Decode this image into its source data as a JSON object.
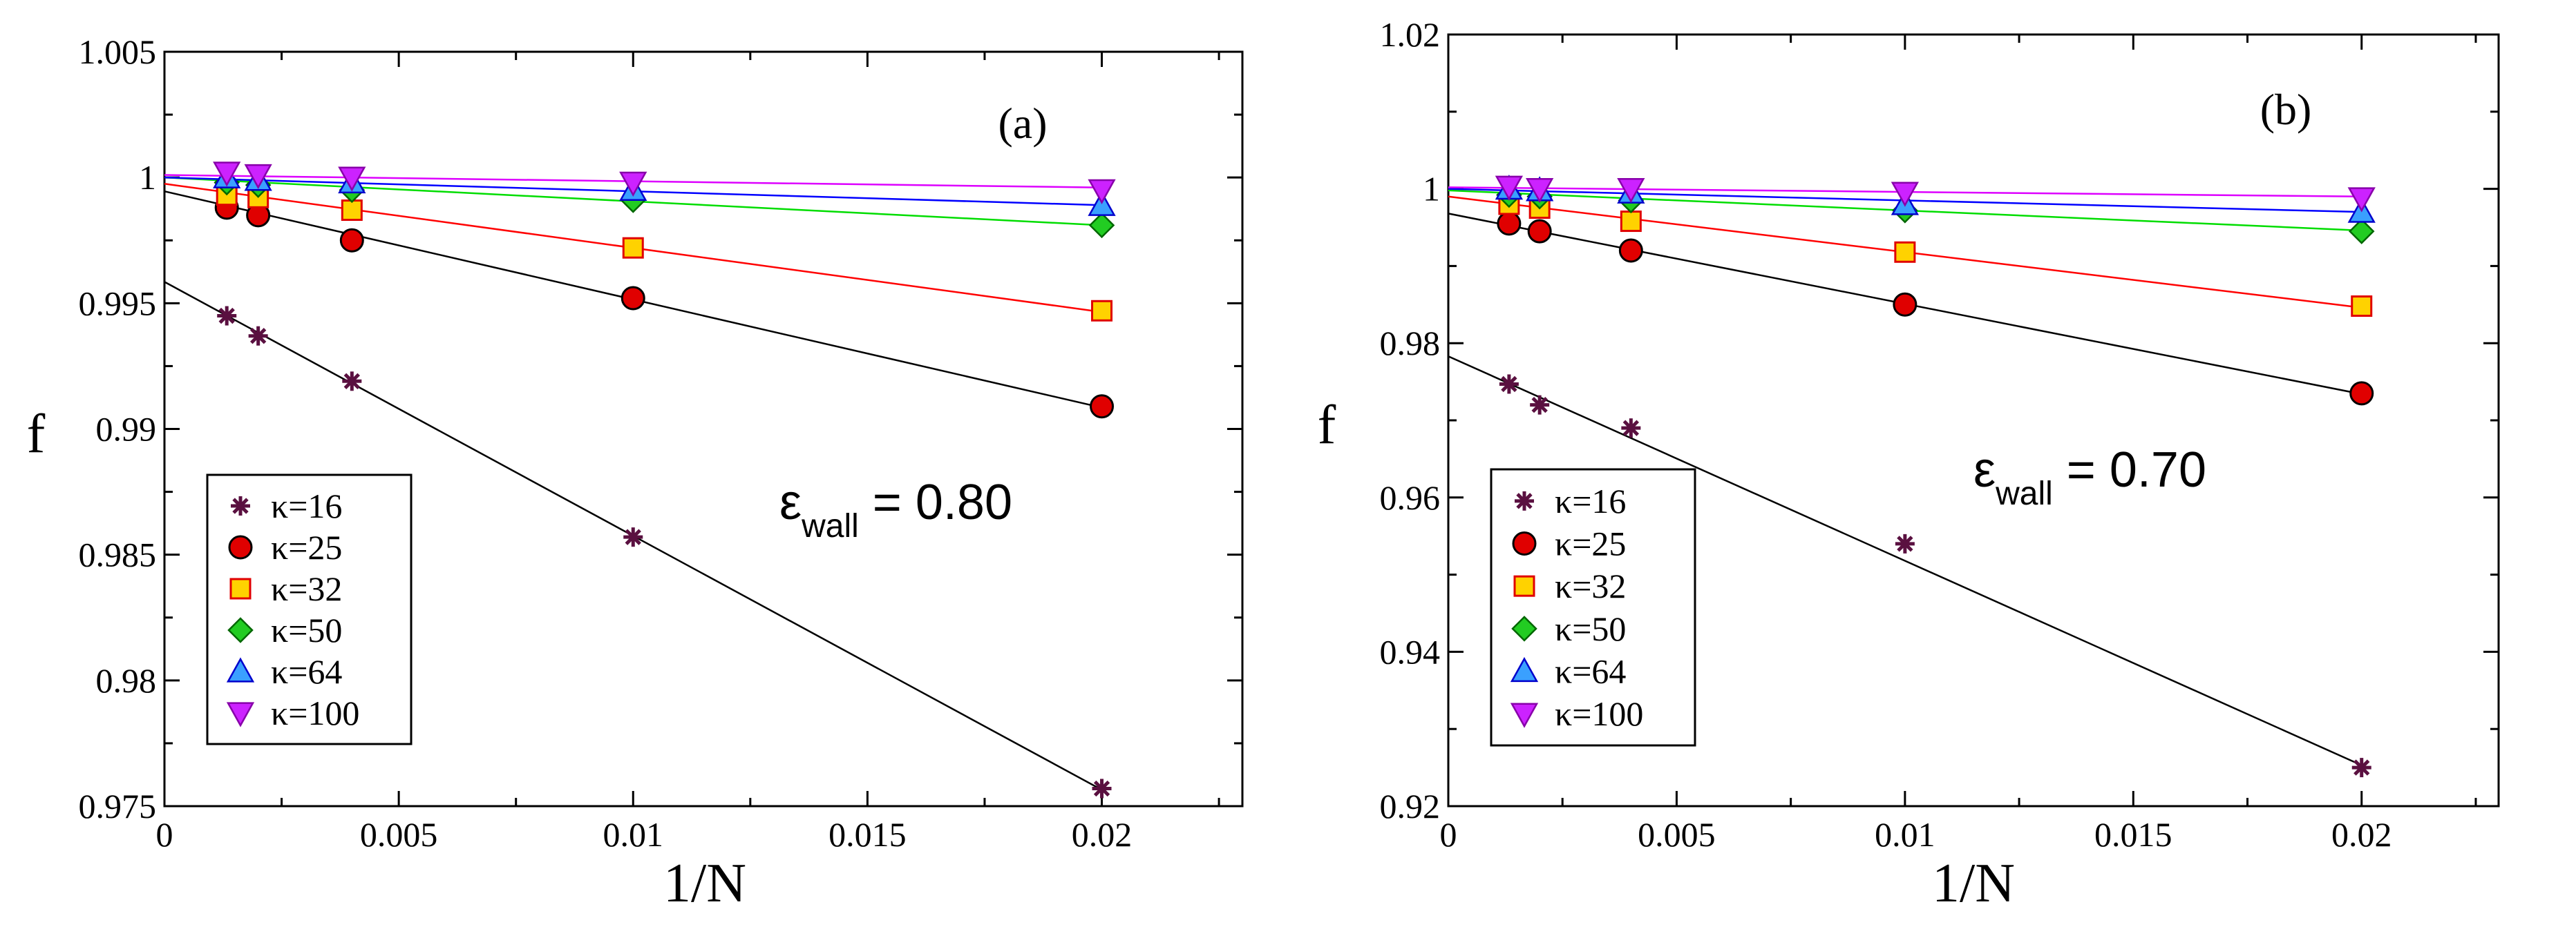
{
  "chart_data": [
    {
      "type": "scatter",
      "panel_label": "(a)",
      "xlabel": "1/N",
      "ylabel": "f",
      "xlim": [
        0,
        0.023
      ],
      "ylim": [
        0.975,
        1.005
      ],
      "xticks": [
        0,
        0.005,
        0.01,
        0.015,
        0.02
      ],
      "xtick_labels": [
        "0",
        "0.005",
        "0.01",
        "0.015",
        "0.02"
      ],
      "yticks": [
        0.975,
        0.98,
        0.985,
        0.99,
        0.995,
        1,
        1.005
      ],
      "ytick_labels": [
        "0.975",
        "0.98",
        "0.985",
        "0.99",
        "0.995",
        "1",
        "1.005"
      ],
      "annotation": {
        "symbol": "ε",
        "sub": "wall",
        "value": " = 0.80"
      },
      "legend_position": "bottom-left",
      "series": [
        {
          "name": "κ=16",
          "marker": "star",
          "color": "#5a1040",
          "x": [
            0.00133,
            0.002,
            0.004,
            0.01,
            0.02
          ],
          "y": [
            0.9945,
            0.9937,
            0.9919,
            0.9857,
            0.9757
          ],
          "fit": {
            "intercept": 0.99585,
            "slope": -1.01
          }
        },
        {
          "name": "κ=25",
          "marker": "circle",
          "color": "#e00000",
          "x": [
            0.00133,
            0.002,
            0.004,
            0.01,
            0.02
          ],
          "y": [
            0.9988,
            0.9985,
            0.9975,
            0.9952,
            0.9909
          ],
          "fit": {
            "intercept": 0.99945,
            "slope": -0.43
          }
        },
        {
          "name": "κ=32",
          "marker": "square",
          "color": "#ffd200",
          "x": [
            0.00133,
            0.002,
            0.004,
            0.01,
            0.02
          ],
          "y": [
            0.9993,
            0.9992,
            0.9987,
            0.9972,
            0.9947
          ],
          "fit": {
            "intercept": 0.99975,
            "slope": -0.255
          }
        },
        {
          "name": "κ=50",
          "marker": "diamond",
          "color": "#22cc22",
          "x": [
            0.00133,
            0.002,
            0.004,
            0.01,
            0.02
          ],
          "y": [
            0.9998,
            0.9997,
            0.9995,
            0.9991,
            0.9981
          ],
          "fit": {
            "intercept": 1.0,
            "slope": -0.095
          }
        },
        {
          "name": "κ=64",
          "marker": "triangle-up",
          "color": "#3aa0ff",
          "x": [
            0.00133,
            0.002,
            0.004,
            0.01,
            0.02
          ],
          "y": [
            1.0,
            0.9999,
            0.9998,
            0.9995,
            0.9989
          ],
          "fit": {
            "intercept": 1.0,
            "slope": -0.055
          }
        },
        {
          "name": "κ=100",
          "marker": "triangle-down",
          "color": "#cc22ff",
          "x": [
            0.00133,
            0.002,
            0.004,
            0.01,
            0.02
          ],
          "y": [
            1.0002,
            1.0001,
            1.0,
            0.9998,
            0.9995
          ],
          "fit": {
            "intercept": 1.0001,
            "slope": -0.025
          }
        }
      ]
    },
    {
      "type": "scatter",
      "panel_label": "(b)",
      "xlabel": "1/N",
      "ylabel": "f",
      "xlim": [
        0,
        0.023
      ],
      "ylim": [
        0.92,
        1.02
      ],
      "xticks": [
        0,
        0.005,
        0.01,
        0.015,
        0.02
      ],
      "xtick_labels": [
        "0",
        "0.005",
        "0.01",
        "0.015",
        "0.02"
      ],
      "yticks": [
        0.92,
        0.94,
        0.96,
        0.98,
        1,
        1.02
      ],
      "ytick_labels": [
        "0.92",
        "0.94",
        "0.96",
        "0.98",
        "1",
        "1.02"
      ],
      "annotation": {
        "symbol": "ε",
        "sub": "wall",
        "value": " = 0.70"
      },
      "legend_position": "bottom-left",
      "series": [
        {
          "name": "κ=16",
          "marker": "star",
          "color": "#5a1040",
          "x": [
            0.00133,
            0.002,
            0.004,
            0.01,
            0.02
          ],
          "y": [
            0.9747,
            0.972,
            0.969,
            0.954,
            0.925
          ],
          "fit": {
            "intercept": 0.9783,
            "slope": -2.65
          }
        },
        {
          "name": "κ=25",
          "marker": "circle",
          "color": "#e00000",
          "x": [
            0.00133,
            0.002,
            0.004,
            0.01,
            0.02
          ],
          "y": [
            0.9955,
            0.9945,
            0.992,
            0.985,
            0.9735
          ],
          "fit": {
            "intercept": 0.9968,
            "slope": -1.17
          }
        },
        {
          "name": "κ=32",
          "marker": "square",
          "color": "#ffd200",
          "x": [
            0.00133,
            0.002,
            0.004,
            0.01,
            0.02
          ],
          "y": [
            0.998,
            0.9975,
            0.9958,
            0.9918,
            0.9848
          ],
          "fit": {
            "intercept": 0.999,
            "slope": -0.72
          }
        },
        {
          "name": "κ=50",
          "marker": "diamond",
          "color": "#22cc22",
          "x": [
            0.00133,
            0.002,
            0.004,
            0.01,
            0.02
          ],
          "y": [
            0.9992,
            0.999,
            0.9985,
            0.9972,
            0.9945
          ],
          "fit": {
            "intercept": 0.9998,
            "slope": -0.26
          }
        },
        {
          "name": "κ=64",
          "marker": "triangle-up",
          "color": "#3aa0ff",
          "x": [
            0.00133,
            0.002,
            0.004,
            0.01,
            0.02
          ],
          "y": [
            1.0,
            0.9998,
            0.9995,
            0.998,
            0.997
          ],
          "fit": {
            "intercept": 1.0,
            "slope": -0.15
          }
        },
        {
          "name": "κ=100",
          "marker": "triangle-down",
          "color": "#cc22ff",
          "x": [
            0.00133,
            0.002,
            0.004,
            0.01,
            0.02
          ],
          "y": [
            1.0003,
            1.0,
            1.0,
            0.9995,
            0.9988
          ],
          "fit": {
            "intercept": 1.0002,
            "slope": -0.06
          }
        }
      ]
    }
  ]
}
